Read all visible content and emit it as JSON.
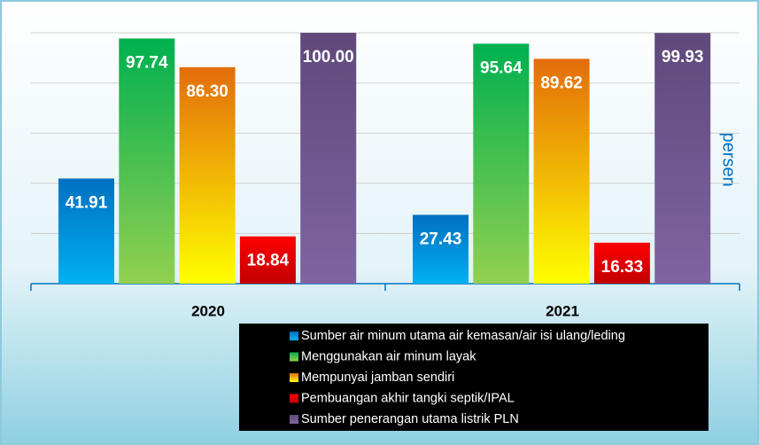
{
  "chart_data": {
    "type": "bar",
    "y_axis_label": "persen",
    "categories": [
      "2020",
      "2021"
    ],
    "ylim": [
      0,
      100
    ],
    "yticks": [
      0,
      20,
      40,
      60,
      80,
      100
    ],
    "grid": true,
    "legend": "bottom-right",
    "series": [
      {
        "name": "Sumber air minum utama air kemasan/air isi ulang/leding",
        "color": "#0070c0",
        "color2": "#00b0f0",
        "values": [
          41.91,
          27.43
        ],
        "value_labels": [
          "41.91",
          "27.43"
        ]
      },
      {
        "name": "Menggunakan air minum layak",
        "color": "#00b050",
        "color2": "#92d050",
        "values": [
          97.74,
          95.64
        ],
        "value_labels": [
          "97.74",
          "95.64"
        ]
      },
      {
        "name": "Mempunyai jamban sendiri",
        "color": "#e36c0a",
        "color2": "#ffff00",
        "values": [
          86.3,
          89.62
        ],
        "value_labels": [
          "86.30",
          "89.62"
        ]
      },
      {
        "name": "Pembuangan akhir tangki septik/IPAL",
        "color": "#ff0000",
        "color2": "#c00000",
        "values": [
          18.84,
          16.33
        ],
        "value_labels": [
          "18.84",
          "16.33"
        ]
      },
      {
        "name": "Sumber penerangan utama listrik PLN",
        "color": "#5f497a",
        "color2": "#8064a2",
        "values": [
          100.0,
          99.93
        ],
        "value_labels": [
          "100.00",
          "99.93"
        ]
      }
    ]
  }
}
